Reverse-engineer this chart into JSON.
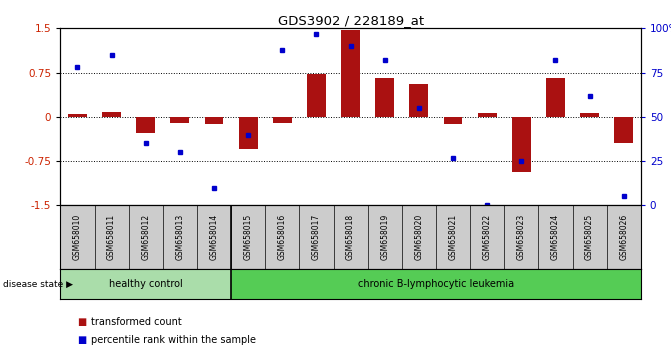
{
  "title": "GDS3902 / 228189_at",
  "samples": [
    "GSM658010",
    "GSM658011",
    "GSM658012",
    "GSM658013",
    "GSM658014",
    "GSM658015",
    "GSM658016",
    "GSM658017",
    "GSM658018",
    "GSM658019",
    "GSM658020",
    "GSM658021",
    "GSM658022",
    "GSM658023",
    "GSM658024",
    "GSM658025",
    "GSM658026"
  ],
  "bar_values": [
    0.05,
    0.08,
    -0.28,
    -0.1,
    -0.12,
    -0.55,
    -0.1,
    0.72,
    1.47,
    0.65,
    0.55,
    -0.12,
    0.07,
    -0.93,
    0.65,
    0.07,
    -0.45
  ],
  "blue_values": [
    78,
    85,
    35,
    30,
    10,
    40,
    88,
    97,
    90,
    82,
    55,
    27,
    0,
    25,
    82,
    62,
    5
  ],
  "ylim_left": [
    -1.5,
    1.5
  ],
  "ylim_right": [
    0,
    100
  ],
  "bar_color": "#aa1111",
  "dot_color": "#0000cc",
  "healthy_color": "#aaddaa",
  "leukemia_color": "#55cc55",
  "healthy_label": "healthy control",
  "leukemia_label": "chronic B-lymphocytic leukemia",
  "disease_state_label": "disease state",
  "healthy_count": 5,
  "legend1": "transformed count",
  "legend2": "percentile rank within the sample",
  "bg_color": "#ffffff",
  "tick_label_color_left": "#cc2200",
  "tick_label_color_right": "#0000cc",
  "yticks_left": [
    -1.5,
    -0.75,
    0.0,
    0.75,
    1.5
  ],
  "yticks_right": [
    0,
    25,
    50,
    75,
    100
  ],
  "ytick_labels_left": [
    "-1.5",
    "-0.75",
    "0",
    "0.75",
    "1.5"
  ],
  "ytick_labels_right": [
    "0",
    "25",
    "50",
    "75",
    "100%"
  ],
  "label_bg": "#cccccc",
  "sep_color": "#000000"
}
